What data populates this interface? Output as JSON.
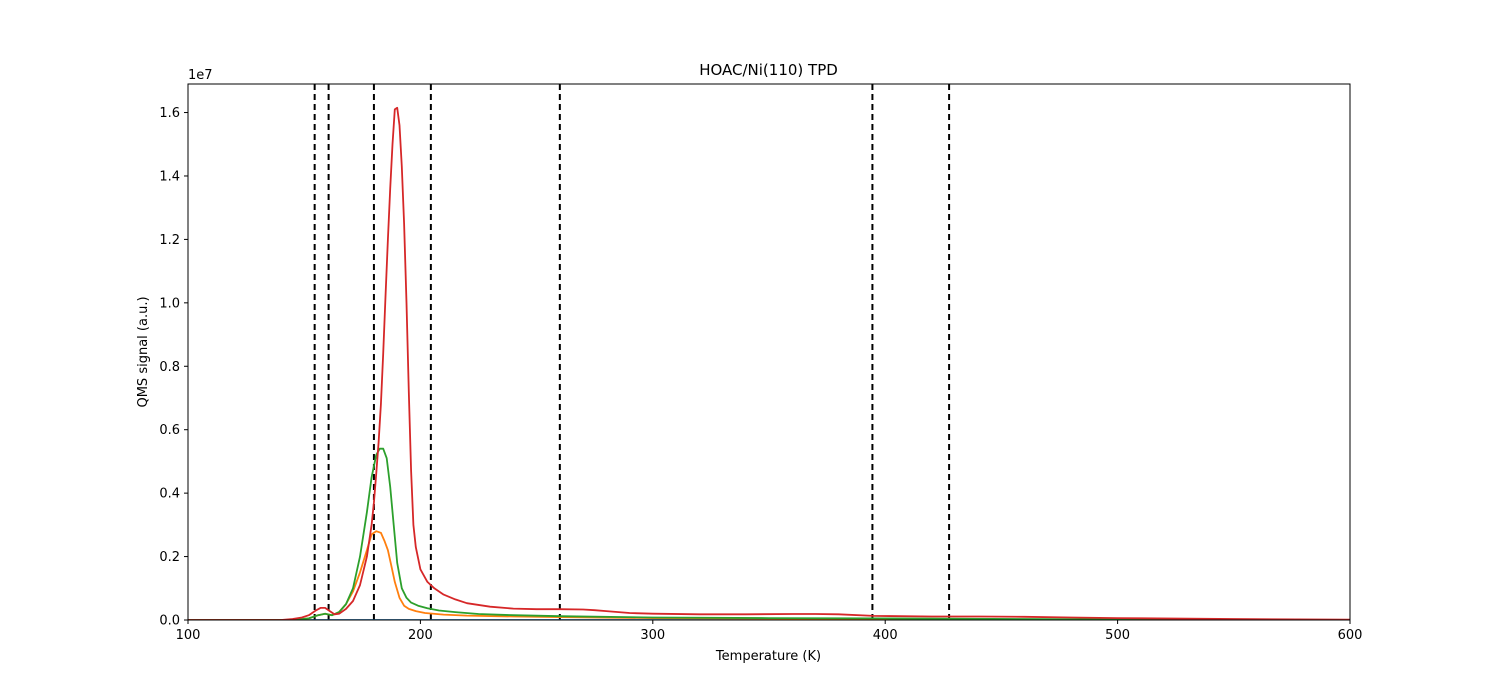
{
  "chart_data": {
    "type": "line",
    "title": "HOAC/Ni(110) TPD",
    "xlabel": "Temperature (K)",
    "ylabel": "QMS signal (a.u.)",
    "offset_label": "1e7",
    "xlim": [
      100,
      600
    ],
    "ylim": [
      0,
      1.69
    ],
    "y_multiplier": 10000000,
    "x_ticks": [
      100,
      200,
      300,
      400,
      500,
      600
    ],
    "y_ticks": [
      0.0,
      0.2,
      0.4,
      0.6,
      0.8,
      1.0,
      1.2,
      1.4,
      1.6
    ],
    "grid": false,
    "legend": "none",
    "vlines": {
      "x": [
        154.5,
        160.5,
        180,
        204.5,
        260,
        394.5,
        427.5
      ],
      "color": "#000000",
      "style": "dashed"
    },
    "series": [
      {
        "color": "#1f77b4",
        "x": [
          100,
          200,
          300,
          400,
          500,
          600
        ],
        "y": [
          0.0,
          0.0,
          0.0,
          0.0,
          0.0,
          0.0
        ]
      },
      {
        "color": "#ff7f0e",
        "x": [
          100,
          145,
          152,
          156,
          159,
          162,
          165,
          168,
          171,
          174,
          177,
          179,
          181,
          183,
          184.5,
          186,
          187.5,
          189,
          191,
          193,
          195,
          198,
          202,
          210,
          220,
          240,
          260,
          300,
          400,
          500,
          600
        ],
        "y": [
          0.0,
          0.0,
          0.005,
          0.015,
          0.02,
          0.015,
          0.025,
          0.05,
          0.09,
          0.15,
          0.22,
          0.27,
          0.28,
          0.275,
          0.25,
          0.22,
          0.17,
          0.12,
          0.07,
          0.045,
          0.035,
          0.028,
          0.022,
          0.017,
          0.014,
          0.011,
          0.009,
          0.006,
          0.003,
          0.001,
          0.0
        ]
      },
      {
        "color": "#2ca02c",
        "x": [
          100,
          145,
          152,
          156,
          159,
          162,
          165,
          168,
          171,
          174,
          177,
          179,
          181,
          182.5,
          184,
          185.5,
          187,
          188.5,
          190,
          192,
          194,
          196,
          199,
          203,
          208,
          215,
          225,
          240,
          260,
          300,
          350,
          400,
          500,
          600
        ],
        "y": [
          0.0,
          0.0,
          0.005,
          0.015,
          0.02,
          0.015,
          0.025,
          0.05,
          0.1,
          0.2,
          0.34,
          0.45,
          0.52,
          0.54,
          0.54,
          0.51,
          0.42,
          0.3,
          0.18,
          0.1,
          0.07,
          0.055,
          0.045,
          0.037,
          0.03,
          0.025,
          0.019,
          0.015,
          0.012,
          0.008,
          0.006,
          0.005,
          0.002,
          0.0
        ]
      },
      {
        "color": "#d62728",
        "x": [
          100,
          140,
          145,
          149,
          152,
          155,
          157,
          159,
          161,
          163,
          165,
          168,
          171,
          174,
          177,
          179,
          180,
          181,
          182,
          183,
          184,
          185,
          186,
          187,
          188,
          189,
          190,
          191,
          192,
          193,
          194,
          195,
          196,
          197,
          198,
          200,
          203,
          206,
          210,
          215,
          220,
          230,
          240,
          250,
          260,
          270,
          275,
          280,
          290,
          300,
          320,
          340,
          360,
          370,
          380,
          395,
          420,
          440,
          460,
          480,
          500,
          550,
          600
        ],
        "y": [
          0.0,
          0.0,
          0.003,
          0.008,
          0.015,
          0.03,
          0.038,
          0.038,
          0.028,
          0.018,
          0.02,
          0.035,
          0.06,
          0.11,
          0.2,
          0.3,
          0.37,
          0.46,
          0.56,
          0.68,
          0.84,
          1.02,
          1.2,
          1.36,
          1.5,
          1.61,
          1.615,
          1.56,
          1.43,
          1.25,
          1.0,
          0.72,
          0.47,
          0.3,
          0.23,
          0.16,
          0.12,
          0.1,
          0.08,
          0.065,
          0.053,
          0.042,
          0.036,
          0.034,
          0.034,
          0.033,
          0.031,
          0.028,
          0.022,
          0.02,
          0.018,
          0.018,
          0.019,
          0.019,
          0.018,
          0.013,
          0.011,
          0.011,
          0.01,
          0.008,
          0.006,
          0.003,
          0.001
        ]
      }
    ]
  }
}
